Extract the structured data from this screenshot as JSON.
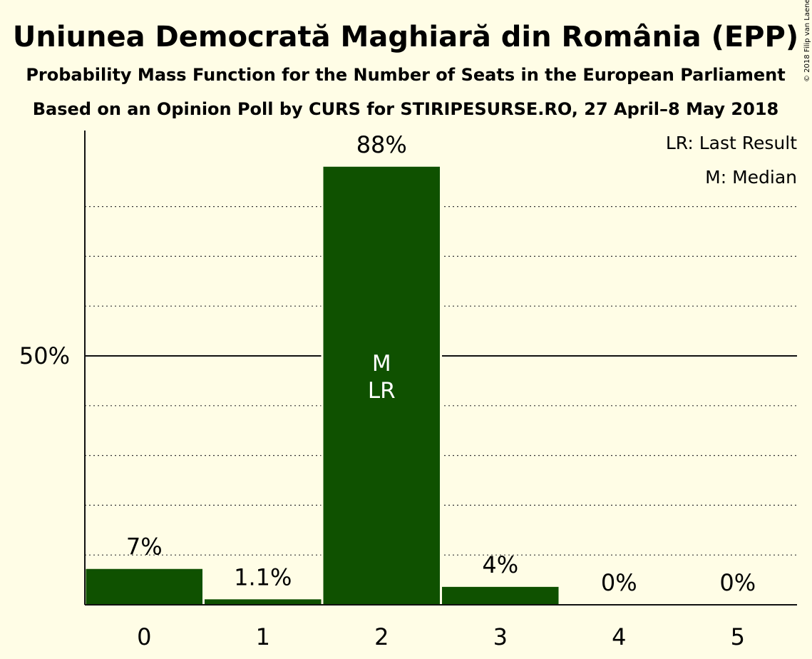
{
  "title": "Uniunea Democrată Maghiară din România (EPP)",
  "subtitle1": "Probability Mass Function for the Number of Seats in the European Parliament",
  "subtitle2": "Based on an Opinion Poll by CURS for STIRIPESURSE.RO, 27 April–8 May 2018",
  "credit": "© 2018 Filip van Laenen",
  "legend": {
    "lr": "LR: Last Result",
    "m": "M: Median"
  },
  "colors": {
    "background": "#fffde6",
    "bar": "#0f5100",
    "text": "#111111"
  },
  "chart_data": {
    "type": "bar",
    "categories": [
      "0",
      "1",
      "2",
      "3",
      "4",
      "5"
    ],
    "values": [
      7.2,
      1.1,
      88,
      3.6,
      0,
      0
    ],
    "data_labels": [
      "7%",
      "1.1%",
      "88%",
      "4%",
      "0%",
      "0%"
    ],
    "bar_markers": [
      [],
      [],
      [
        "M",
        "LR"
      ],
      [],
      [],
      []
    ],
    "ylim": [
      0,
      95
    ],
    "yticks": [
      {
        "value": 50,
        "label": "50%"
      }
    ],
    "gridlines": [
      10,
      20,
      30,
      40,
      60,
      70,
      80
    ],
    "legend_placement": "top-right"
  }
}
